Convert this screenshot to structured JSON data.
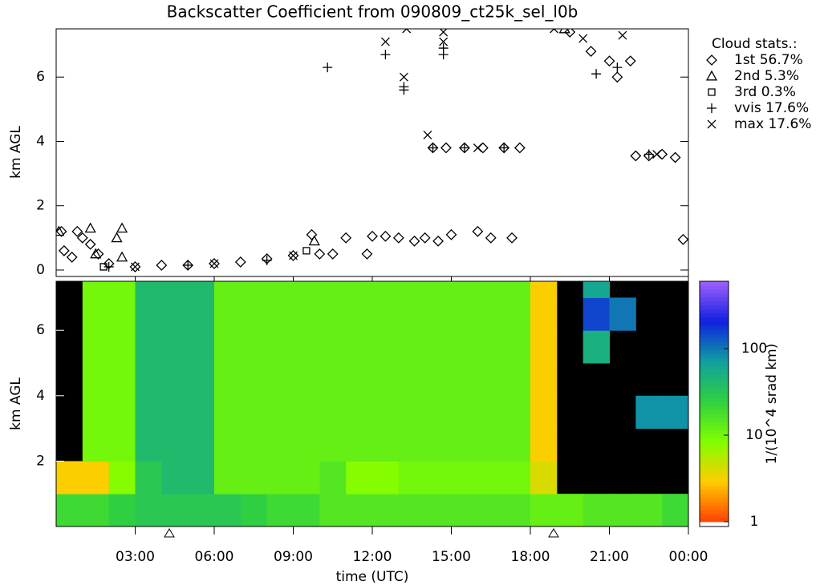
{
  "chart_data": [
    {
      "type": "scatter",
      "title": "Backscatter Coefficient from 090809_ct25k_sel_l0b",
      "ylabel": "km AGL",
      "legend_title": "Cloud stats.:",
      "xlim": [
        0,
        24
      ],
      "ylim": [
        -0.2,
        7.5
      ],
      "yticks": [
        0,
        2,
        4,
        6
      ],
      "series": [
        {
          "name": "1st 56.7%",
          "marker": "diamond",
          "color": "#000000",
          "x": [
            0.2,
            0.3,
            0.6,
            0.8,
            1.0,
            1.3,
            1.6,
            2,
            3,
            4,
            5,
            6,
            7,
            8,
            9,
            9.7,
            10,
            10.5,
            11,
            11.8,
            12,
            12.5,
            13,
            13.6,
            14,
            14.3,
            14.5,
            14.8,
            15,
            15.5,
            16,
            16.2,
            16.5,
            17,
            17.3,
            17.6,
            19.5,
            20.3,
            21,
            21.3,
            21.8,
            22,
            22.5,
            23,
            23.5,
            23.8
          ],
          "values": [
            1.2,
            0.6,
            0.4,
            1.2,
            1.0,
            0.8,
            0.5,
            0.2,
            0.1,
            0.15,
            0.15,
            0.2,
            0.25,
            0.35,
            0.45,
            1.1,
            0.5,
            0.5,
            1.0,
            0.5,
            1.05,
            1.05,
            1.0,
            0.9,
            1.0,
            3.8,
            0.9,
            3.8,
            1.1,
            3.8,
            1.2,
            3.8,
            1.0,
            3.8,
            1.0,
            3.8,
            7.4,
            6.8,
            6.5,
            6.0,
            6.5,
            3.55,
            3.55,
            3.6,
            3.5,
            0.95
          ]
        },
        {
          "name": "2nd  5.3%",
          "marker": "triangle",
          "color": "#000000",
          "x": [
            0.1,
            1.3,
            1.5,
            2.3,
            2.5,
            2.5,
            9.8,
            19.3
          ],
          "values": [
            1.2,
            1.3,
            0.5,
            1.0,
            1.3,
            0.4,
            0.9,
            7.5
          ]
        },
        {
          "name": "3rd  0.3%",
          "marker": "square",
          "color": "#000000",
          "x": [
            1.8,
            9.5
          ],
          "values": [
            0.1,
            0.6
          ]
        },
        {
          "name": "vvis 17.6%",
          "marker": "plus",
          "color": "#000000",
          "x": [
            10.3,
            12.5,
            13.2,
            13.2,
            14.7,
            14.7,
            14.3,
            15.5,
            17.0,
            20.5,
            21.3,
            22.5,
            2,
            5,
            8
          ],
          "values": [
            6.3,
            6.7,
            5.6,
            5.7,
            6.7,
            6.9,
            3.8,
            3.8,
            3.8,
            6.1,
            6.3,
            3.6,
            0.1,
            0.15,
            0.3
          ]
        },
        {
          "name": "max 17.6%",
          "marker": "cross",
          "color": "#000000",
          "x": [
            12.5,
            13.2,
            13.3,
            14.7,
            14.7,
            18.9,
            20,
            21.5,
            14.1,
            16,
            22.8,
            3,
            6,
            9
          ],
          "values": [
            7.1,
            6.0,
            7.5,
            7.4,
            7.1,
            7.5,
            7.2,
            7.3,
            4.2,
            3.8,
            3.6,
            0.1,
            0.2,
            0.45
          ]
        }
      ]
    },
    {
      "type": "heatmap",
      "ylabel": "km AGL",
      "xlabel": "time (UTC)",
      "xlim": [
        0,
        24
      ],
      "xticks": [
        {
          "value": 3,
          "label": "03:00"
        },
        {
          "value": 6,
          "label": "06:00"
        },
        {
          "value": 9,
          "label": "09:00"
        },
        {
          "value": 12,
          "label": "12:00"
        },
        {
          "value": 15,
          "label": "15:00"
        },
        {
          "value": 18,
          "label": "18:00"
        },
        {
          "value": 21,
          "label": "21:00"
        },
        {
          "value": 24,
          "label": "00:00"
        }
      ],
      "ylim": [
        0,
        7.5
      ],
      "yticks": [
        2,
        4,
        6
      ],
      "xbins": [
        0,
        1,
        2,
        3,
        4,
        5,
        6,
        7,
        8,
        9,
        10,
        11,
        12,
        13,
        14,
        15,
        16,
        17,
        18,
        19,
        20,
        21,
        22,
        23,
        24
      ],
      "ybins": [
        0,
        1,
        2,
        3,
        4,
        5,
        6,
        7,
        7.5
      ],
      "values": [
        [
          20,
          20,
          25,
          30,
          30,
          30,
          30,
          25,
          20,
          20,
          15,
          15,
          15,
          15,
          15,
          15,
          15,
          15,
          12,
          12,
          15,
          15,
          15,
          20
        ],
        [
          3,
          3,
          8,
          30,
          40,
          40,
          12,
          12,
          12,
          12,
          15,
          8,
          8,
          10,
          10,
          10,
          10,
          10,
          4,
          null,
          null,
          null,
          null,
          null
        ],
        [
          null,
          10,
          10,
          40,
          40,
          40,
          12,
          12,
          12,
          12,
          12,
          12,
          12,
          12,
          12,
          12,
          12,
          12,
          3,
          null,
          null,
          null,
          null,
          null
        ],
        [
          null,
          10,
          10,
          40,
          40,
          40,
          12,
          12,
          12,
          12,
          12,
          12,
          12,
          12,
          12,
          12,
          12,
          12,
          3,
          null,
          null,
          null,
          80,
          80
        ],
        [
          null,
          10,
          10,
          40,
          40,
          40,
          12,
          12,
          12,
          12,
          12,
          12,
          12,
          12,
          12,
          12,
          12,
          12,
          3,
          null,
          null,
          null,
          null,
          null
        ],
        [
          null,
          10,
          10,
          40,
          40,
          40,
          12,
          12,
          12,
          12,
          12,
          12,
          12,
          12,
          12,
          12,
          12,
          12,
          3,
          null,
          50,
          null,
          null,
          null
        ],
        [
          null,
          10,
          10,
          40,
          40,
          40,
          12,
          12,
          12,
          12,
          12,
          12,
          12,
          12,
          12,
          12,
          12,
          12,
          3,
          null,
          150,
          100,
          null,
          null
        ],
        [
          null,
          10,
          10,
          40,
          40,
          40,
          12,
          12,
          12,
          12,
          12,
          12,
          12,
          12,
          12,
          12,
          12,
          12,
          3,
          null,
          60,
          null,
          null,
          null
        ]
      ],
      "colorbar_label": "1/(10^4 srad km)",
      "clim": [
        1,
        600
      ],
      "cticks": [
        1,
        10,
        100
      ],
      "log_color": true,
      "colormap": [
        "#ff4000",
        "#ffcc00",
        "#80ff00",
        "#30d040",
        "#10a0a0",
        "#1020e0",
        "#a060ff"
      ]
    }
  ]
}
